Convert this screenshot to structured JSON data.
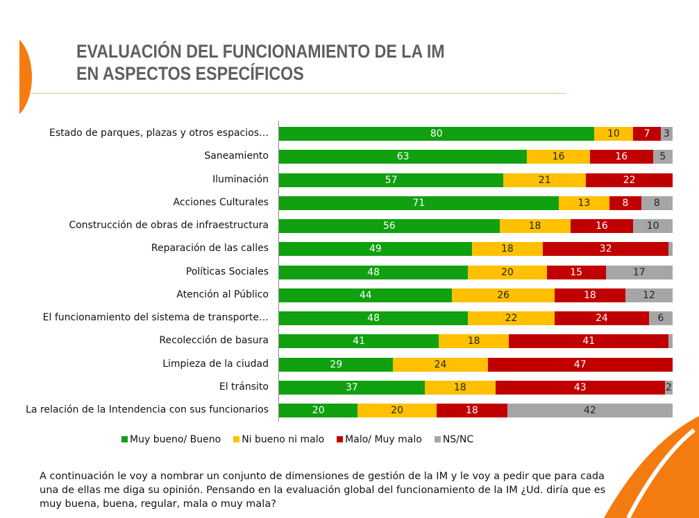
{
  "title_lines": [
    "EVALUACIÓN DEL FUNCIONAMIENTO DE LA IM",
    "EN ASPECTOS ESPECÍFICOS"
  ],
  "chart_data": {
    "type": "bar",
    "orientation": "horizontal",
    "stacked": true,
    "title": "EVALUACIÓN DEL FUNCIONAMIENTO DE LA IM EN ASPECTOS ESPECÍFICOS",
    "xlim": [
      0,
      100
    ],
    "legend_position": "bottom",
    "categories": [
      "Estado de parques, plazas y otros espacios…",
      "Saneamiento",
      "Iluminación",
      "Acciones Culturales",
      "Construcción de obras de infraestructura",
      "Reparación de las calles",
      "Políticas Sociales",
      "Atención al Público",
      "El funcionamiento del sistema de transporte…",
      "Recolección de basura",
      "Limpieza de la ciudad",
      "El tránsito",
      "La relación de la Intendencia con sus funcionarios"
    ],
    "series": [
      {
        "name": "Muy bueno/ Bueno",
        "color": "#10a010",
        "text": "#ffffff",
        "values": [
          80,
          63,
          57,
          71,
          56,
          49,
          48,
          44,
          48,
          41,
          29,
          37,
          20
        ]
      },
      {
        "name": "Ni bueno ni malo",
        "color": "#ffc000",
        "text": "#222222",
        "values": [
          10,
          16,
          21,
          13,
          18,
          18,
          20,
          26,
          22,
          18,
          24,
          18,
          20
        ]
      },
      {
        "name": "Malo/ Muy malo",
        "color": "#c00000",
        "text": "#ffffff",
        "values": [
          7,
          16,
          22,
          8,
          16,
          32,
          15,
          18,
          24,
          41,
          47,
          43,
          18
        ]
      },
      {
        "name": "NS/NC",
        "color": "#a6a6a6",
        "text": "#222222",
        "values": [
          3,
          5,
          0,
          8,
          10,
          1,
          17,
          12,
          6,
          1,
          0,
          2,
          42
        ]
      }
    ]
  },
  "note": "A continuación le voy a nombrar un conjunto de dimensiones de gestión de la IM y le voy a pedir que para cada una de ellas me diga su opinión. Pensando en la evaluación global del funcionamiento de la IM ¿Ud. diría que es muy buena, buena, regular, mala o muy mala?"
}
